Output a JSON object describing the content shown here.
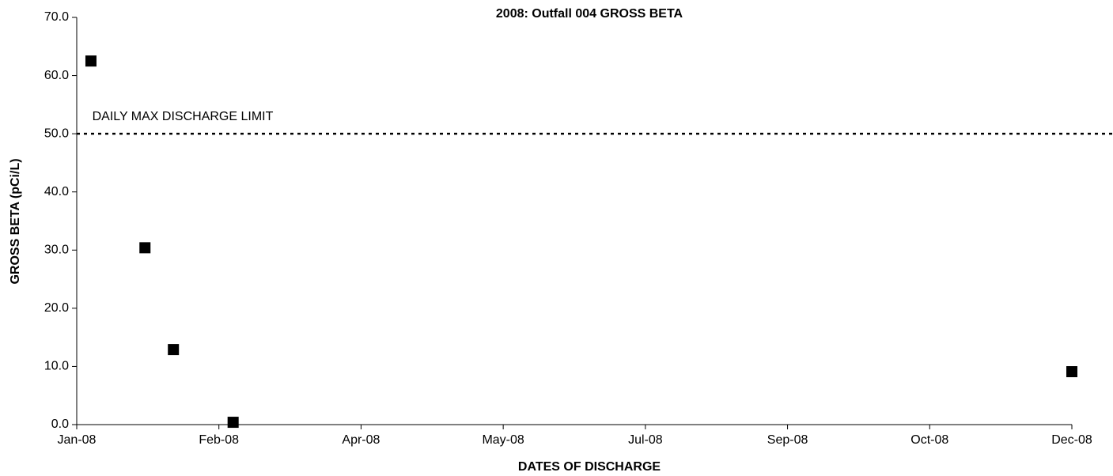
{
  "chart_data": {
    "type": "scatter",
    "title": "2008: Outfall 004 GROSS BETA",
    "x_label": "DATES OF DISCHARGE",
    "y_label": "GROSS BETA (pCi/L)",
    "x": [
      5,
      24,
      34,
      55,
      350
    ],
    "series": [
      {
        "name": "GROSS BETA",
        "color": "#000000",
        "values": [
          62.5,
          30.4,
          12.9,
          0.4,
          9.1
        ]
      }
    ],
    "xlim": [
      0,
      350
    ],
    "xticks": [
      {
        "value": 0,
        "label": "Jan-08"
      },
      {
        "value": 50,
        "label": "Feb-08"
      },
      {
        "value": 100,
        "label": "Apr-08"
      },
      {
        "value": 150,
        "label": "May-08"
      },
      {
        "value": 200,
        "label": "Jul-08"
      },
      {
        "value": 250,
        "label": "Sep-08"
      },
      {
        "value": 300,
        "label": "Oct-08"
      },
      {
        "value": 350,
        "label": "Dec-08"
      }
    ],
    "ylim": [
      0,
      70
    ],
    "yticks": [
      {
        "value": 0,
        "label": "0.0"
      },
      {
        "value": 10,
        "label": "10.0"
      },
      {
        "value": 20,
        "label": "20.0"
      },
      {
        "value": 30,
        "label": "30.0"
      },
      {
        "value": 40,
        "label": "40.0"
      },
      {
        "value": 50,
        "label": "50.0"
      },
      {
        "value": 60,
        "label": "60.0"
      },
      {
        "value": 70,
        "label": "70.0"
      }
    ],
    "reference_line": {
      "value": 50,
      "label": "DAILY MAX DISCHARGE LIMIT"
    },
    "grid": false
  }
}
